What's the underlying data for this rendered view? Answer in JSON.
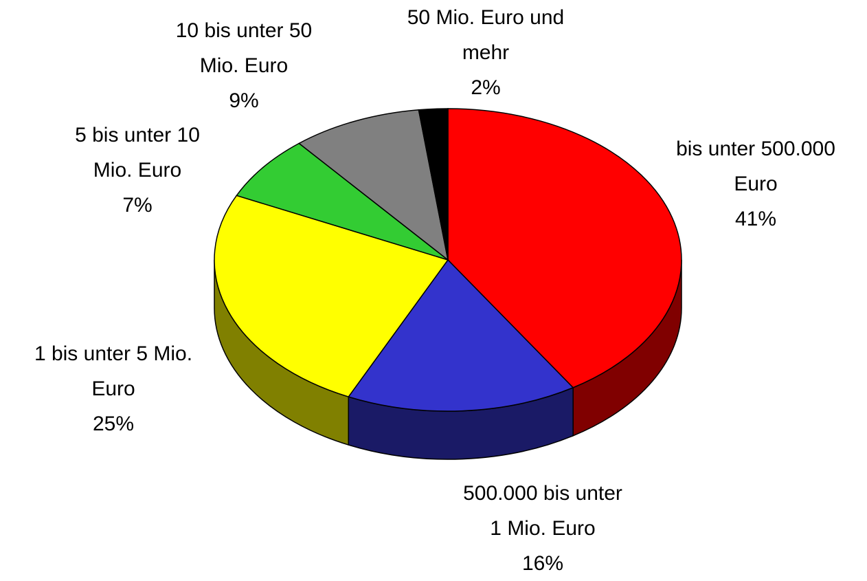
{
  "chart_data": {
    "type": "pie",
    "categories": [
      "bis unter 500.000 Euro",
      "500.000 bis unter 1 Mio. Euro",
      "1 bis unter 5 Mio. Euro",
      "5 bis unter 10 Mio. Euro",
      "10 bis unter 50 Mio. Euro",
      "50 Mio. Euro und mehr"
    ],
    "values": [
      41,
      16,
      25,
      7,
      9,
      2
    ],
    "value_labels": [
      "41%",
      "16%",
      "25%",
      "7%",
      "9%",
      "2%"
    ],
    "colors": [
      "#ff0000",
      "#3333cc",
      "#ffff00",
      "#33cc33",
      "#808080",
      "#000000"
    ]
  }
}
